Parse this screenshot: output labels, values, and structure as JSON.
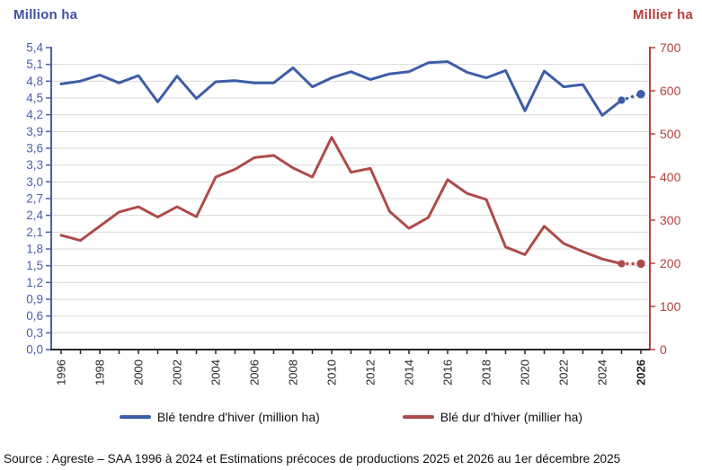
{
  "chart_data": {
    "type": "line",
    "title": "",
    "x": [
      1996,
      1997,
      1998,
      1999,
      2000,
      2001,
      2002,
      2003,
      2004,
      2005,
      2006,
      2007,
      2008,
      2009,
      2010,
      2011,
      2012,
      2013,
      2014,
      2015,
      2016,
      2017,
      2018,
      2019,
      2020,
      2021,
      2022,
      2023,
      2024,
      2025,
      2026
    ],
    "x_axis": {
      "tick_labels": [
        "1996",
        "1998",
        "2000",
        "2002",
        "2004",
        "2006",
        "2008",
        "2010",
        "2012",
        "2014",
        "2016",
        "2018",
        "2020",
        "2022",
        "2024",
        "2026"
      ],
      "bold_label": "2026",
      "color": "#262626"
    },
    "left_axis": {
      "title": "Million ha",
      "min": 0,
      "max": 5.4,
      "step": 0.3,
      "tick_labels": [
        "5,4",
        "5,1",
        "4,8",
        "4,5",
        "4,2",
        "3,9",
        "3,6",
        "3,3",
        "3,0",
        "2,7",
        "2,4",
        "2,1",
        "1,8",
        "1,5",
        "1,2",
        "0,9",
        "0,6",
        "0,3",
        "0,0"
      ],
      "color": "#4a5fa8",
      "title_color": "#3e52a4"
    },
    "right_axis": {
      "title": "Millier ha",
      "min": 0,
      "max": 700,
      "step": 100,
      "tick_labels": [
        "700",
        "600",
        "500",
        "400",
        "300",
        "200",
        "100",
        "0"
      ],
      "color": "#b5413f",
      "title_color": "#b5413f"
    },
    "grid": true,
    "grid_color": "#d9d9d9",
    "series": [
      {
        "name": "Blé tendre d'hiver (million ha)",
        "axis": "left",
        "color": "#3d5da7",
        "values": [
          4.75,
          4.8,
          4.91,
          4.77,
          4.9,
          4.43,
          4.89,
          4.49,
          4.79,
          4.81,
          4.77,
          4.77,
          5.04,
          4.7,
          4.86,
          4.97,
          4.83,
          4.93,
          4.97,
          5.13,
          5.15,
          4.96,
          4.86,
          4.99,
          4.27,
          4.98,
          4.7,
          4.74,
          4.19,
          4.46,
          4.57
        ],
        "estimated_from_x": 2025,
        "marker_x": [
          2025,
          2026
        ]
      },
      {
        "name": "Blé dur d'hiver (millier ha)",
        "axis": "right",
        "color": "#ae4b49",
        "values": [
          265,
          253,
          286,
          319,
          331,
          307,
          331,
          308,
          400,
          418,
          445,
          450,
          421,
          400,
          492,
          411,
          420,
          320,
          281,
          306,
          394,
          362,
          348,
          238,
          220,
          286,
          246,
          227,
          210,
          199,
          199
        ],
        "estimated_from_x": 2025,
        "marker_x": [
          2025,
          2026
        ]
      }
    ]
  },
  "legend": {
    "items": [
      {
        "label": "Blé tendre d'hiver (million ha)",
        "color": "#3d5da7"
      },
      {
        "label": "Blé dur d'hiver (millier ha)",
        "color": "#ae4b49"
      }
    ]
  },
  "source": {
    "text": "Source : Agreste – SAA 1996 à 2024 et Estimations précoces de productions 2025 et 2026 au 1er décembre 2025"
  }
}
